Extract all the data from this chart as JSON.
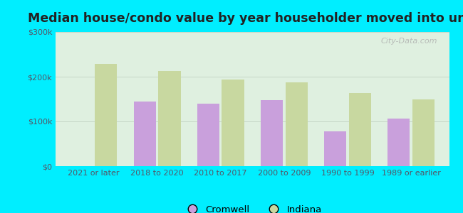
{
  "title": "Median house/condo value by year householder moved into unit",
  "categories": [
    "2021 or later",
    "2018 to 2020",
    "2010 to 2017",
    "2000 to 2009",
    "1990 to 1999",
    "1989 or earlier"
  ],
  "cromwell_values": [
    null,
    145000,
    140000,
    147000,
    78000,
    107000
  ],
  "indiana_values": [
    228000,
    213000,
    193000,
    187000,
    163000,
    150000
  ],
  "cromwell_color": "#c9a0dc",
  "indiana_color": "#c8d8a0",
  "background_outer": "#00eeff",
  "background_inner": "#dff0e0",
  "ylim": [
    0,
    300000
  ],
  "yticks": [
    0,
    100000,
    200000,
    300000
  ],
  "ytick_labels": [
    "$0",
    "$100k",
    "$200k",
    "$300k"
  ],
  "bar_width": 0.35,
  "legend_labels": [
    "Cromwell",
    "Indiana"
  ],
  "watermark": "City-Data.com",
  "title_fontsize": 12.5,
  "tick_fontsize": 8,
  "tick_color": "#555566"
}
